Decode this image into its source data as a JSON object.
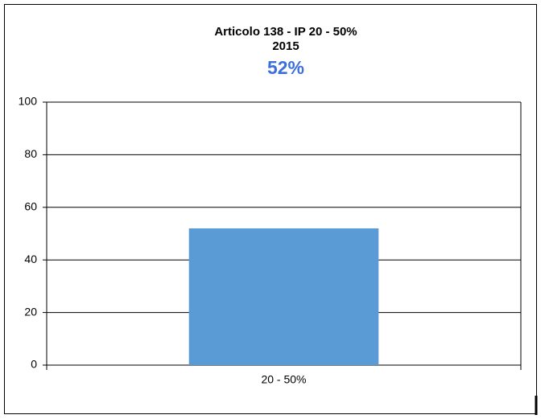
{
  "chart_data": {
    "type": "bar",
    "title": "Articolo 138 - IP 20 - 50%",
    "subtitle": "2015",
    "categories": [
      "20 - 50%"
    ],
    "values": [
      52
    ],
    "value_labels": [
      "52%"
    ],
    "color": "#5b9bd5",
    "ylim": [
      0,
      100
    ],
    "yticks": [
      0,
      20,
      40,
      60,
      80,
      100
    ],
    "grid": true
  }
}
